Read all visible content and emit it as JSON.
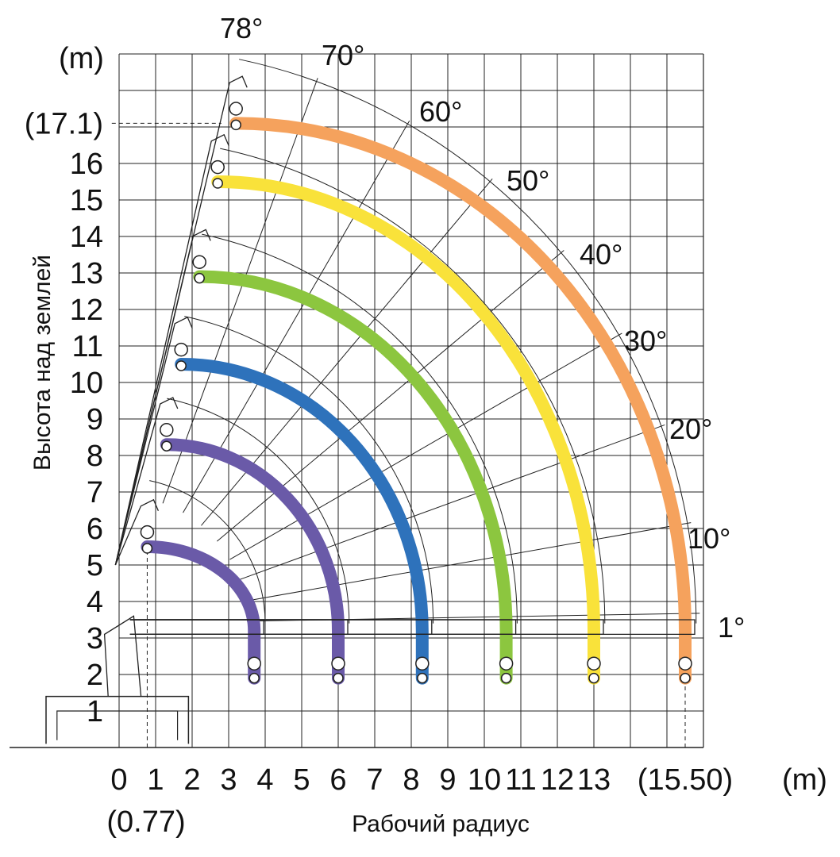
{
  "chart_data": {
    "type": "line",
    "title": "",
    "xlabel": "Рабочий радиус",
    "ylabel": "Высота над землей",
    "x_unit": "(m)",
    "y_unit": "(m)",
    "xlim": [
      0,
      15.5
    ],
    "ylim": [
      0,
      17.1
    ],
    "grid": true,
    "x_ticks": [
      "0",
      "1",
      "2",
      "3",
      "4",
      "5",
      "6",
      "7",
      "8",
      "9",
      "10",
      "11",
      "12",
      "13",
      "(15.50)"
    ],
    "x_extra_label": "(0.77)",
    "y_ticks": [
      "1",
      "2",
      "3",
      "4",
      "5",
      "6",
      "7",
      "8",
      "9",
      "10",
      "11",
      "12",
      "13",
      "14",
      "15",
      "16",
      "(17.1)"
    ],
    "angles": [
      {
        "label": "78°",
        "deg": 78
      },
      {
        "label": "70°",
        "deg": 70
      },
      {
        "label": "60°",
        "deg": 60
      },
      {
        "label": "50°",
        "deg": 50
      },
      {
        "label": "40°",
        "deg": 40
      },
      {
        "label": "30°",
        "deg": 30
      },
      {
        "label": "20°",
        "deg": 20
      },
      {
        "label": "10°",
        "deg": 10
      },
      {
        "label": "1°",
        "deg": 1
      }
    ],
    "series": [
      {
        "color": "#6a5aa8",
        "max_height": 5.5,
        "max_radius": 3.7
      },
      {
        "color": "#6a5aa8",
        "max_height": 8.3,
        "max_radius": 6.0
      },
      {
        "color": "#2e72bb",
        "max_height": 10.5,
        "max_radius": 8.3
      },
      {
        "color": "#8cc63f",
        "max_height": 12.9,
        "max_radius": 10.6
      },
      {
        "color": "#f9e23a",
        "max_height": 15.5,
        "max_radius": 13.0
      },
      {
        "color": "#f5a25d",
        "max_height": 17.1,
        "max_radius": 15.5
      }
    ]
  }
}
